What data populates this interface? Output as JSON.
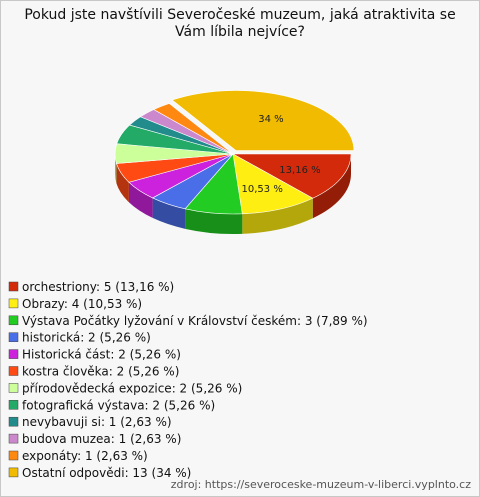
{
  "chart_data": {
    "type": "pie3d",
    "title": "Pokud jste navštívili Severočeské muzeum, jaká atraktivita se Vám líbila nejvíce?",
    "categories": [
      "orchestriony: 5 (13,16 %)",
      "Obrazy: 4 (10,53 %)",
      "Výstava Počátky lyžování v Království českém: 3 (7,89 %)",
      "historická: 2 (5,26 %)",
      "Historická část: 2 (5,26 %)",
      "kostra člověka: 2 (5,26 %)",
      "přírodovědecká expozice: 2 (5,26 %)",
      "fotografická výstava: 2 (5,26 %)",
      "nevybavuji si: 1 (2,63 %)",
      "budova muzea: 1 (2,63 %)",
      "exponáty: 1 (2,63 %)",
      "Ostatní odpovědi: 13 (34 %)"
    ],
    "values": [
      13.16,
      10.53,
      7.89,
      5.26,
      5.26,
      5.26,
      5.26,
      5.26,
      2.63,
      2.63,
      2.63,
      34
    ],
    "value_labels": [
      "13,16 %",
      "10,53 %",
      null,
      null,
      null,
      null,
      null,
      null,
      null,
      null,
      null,
      "34 %"
    ],
    "colors": [
      "#d42a0c",
      "#ffee11",
      "#22cc22",
      "#4a6ee8",
      "#cc22dd",
      "#ff4a14",
      "#ccff99",
      "#22aa66",
      "#228c8c",
      "#cc88cc",
      "#ff8811",
      "#f0bb00"
    ],
    "exploded": [
      11
    ],
    "source": "zdroj: https://severoceske-muzeum-v-liberci.vyplnto.cz"
  }
}
